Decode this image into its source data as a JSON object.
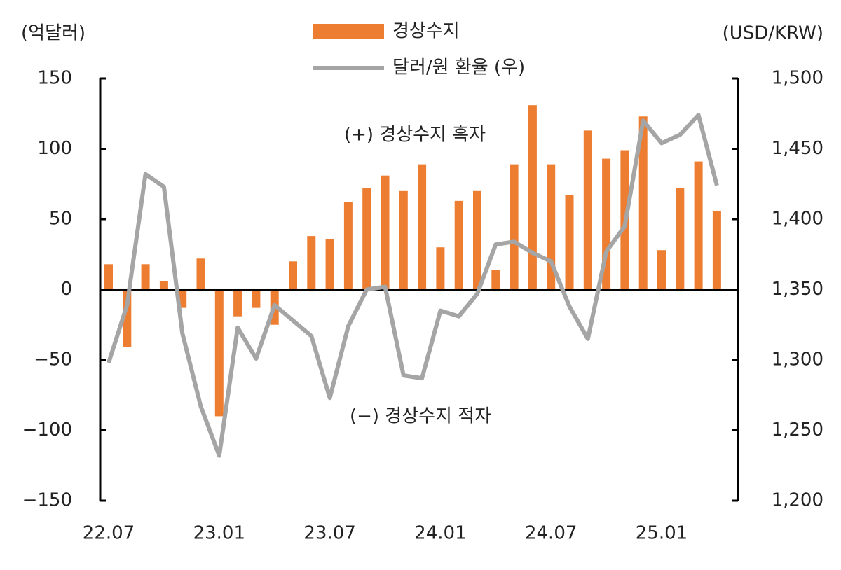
{
  "chart_data": {
    "type": "bar",
    "y_label": "(억달러)",
    "y2_label": "(USD/KRW)",
    "annotations": [
      "(+) 경상수지 흑자",
      "(−) 경상수지 적자"
    ],
    "categories": [
      "22.07",
      null,
      null,
      null,
      null,
      null,
      "23.01",
      null,
      null,
      null,
      null,
      null,
      "23.07",
      null,
      null,
      null,
      null,
      null,
      "24.01",
      null,
      null,
      null,
      null,
      null,
      "24.07",
      null,
      null,
      null,
      null,
      null,
      "25.01",
      null,
      null,
      null
    ],
    "series": [
      {
        "name": "경상수지",
        "type": "bar",
        "color": "#ed7d31",
        "values": [
          18,
          -41,
          18,
          6,
          -13,
          22,
          -90,
          -19,
          -13,
          -25,
          20,
          38,
          36,
          62,
          72,
          81,
          70,
          89,
          30,
          63,
          70,
          14,
          89,
          131,
          89,
          67,
          113,
          93,
          99,
          123,
          28,
          72,
          91,
          56
        ]
      },
      {
        "name": "달러/원 환율 (우)",
        "type": "line",
        "color": "#a5a5a5",
        "axis": "y2",
        "values": [
          1298,
          1339,
          1432,
          1423,
          1319,
          1267,
          1232,
          1323,
          1301,
          1339,
          1328,
          1317,
          1273,
          1324,
          1350,
          1352,
          1289,
          1287,
          1335,
          1331,
          1347,
          1382,
          1384,
          1376,
          1370,
          1338,
          1315,
          1377,
          1395,
          1470,
          1454,
          1460,
          1474,
          1424
        ]
      }
    ],
    "ylim": [
      -150,
      150
    ],
    "yticks": [
      {
        "value": -150,
        "label": "−150"
      },
      {
        "value": -100,
        "label": "−100"
      },
      {
        "value": -50,
        "label": "−50"
      },
      0,
      50,
      100,
      150
    ],
    "y2lim": [
      1200,
      1500
    ],
    "y2ticks": [
      {
        "value": 1200,
        "label": "1,200"
      },
      {
        "value": 1250,
        "label": "1,250"
      },
      {
        "value": 1300,
        "label": "1,300"
      },
      {
        "value": 1350,
        "label": "1,350"
      },
      {
        "value": 1400,
        "label": "1,400"
      },
      {
        "value": 1450,
        "label": "1,450"
      },
      {
        "value": 1500,
        "label": "1,500"
      }
    ]
  }
}
